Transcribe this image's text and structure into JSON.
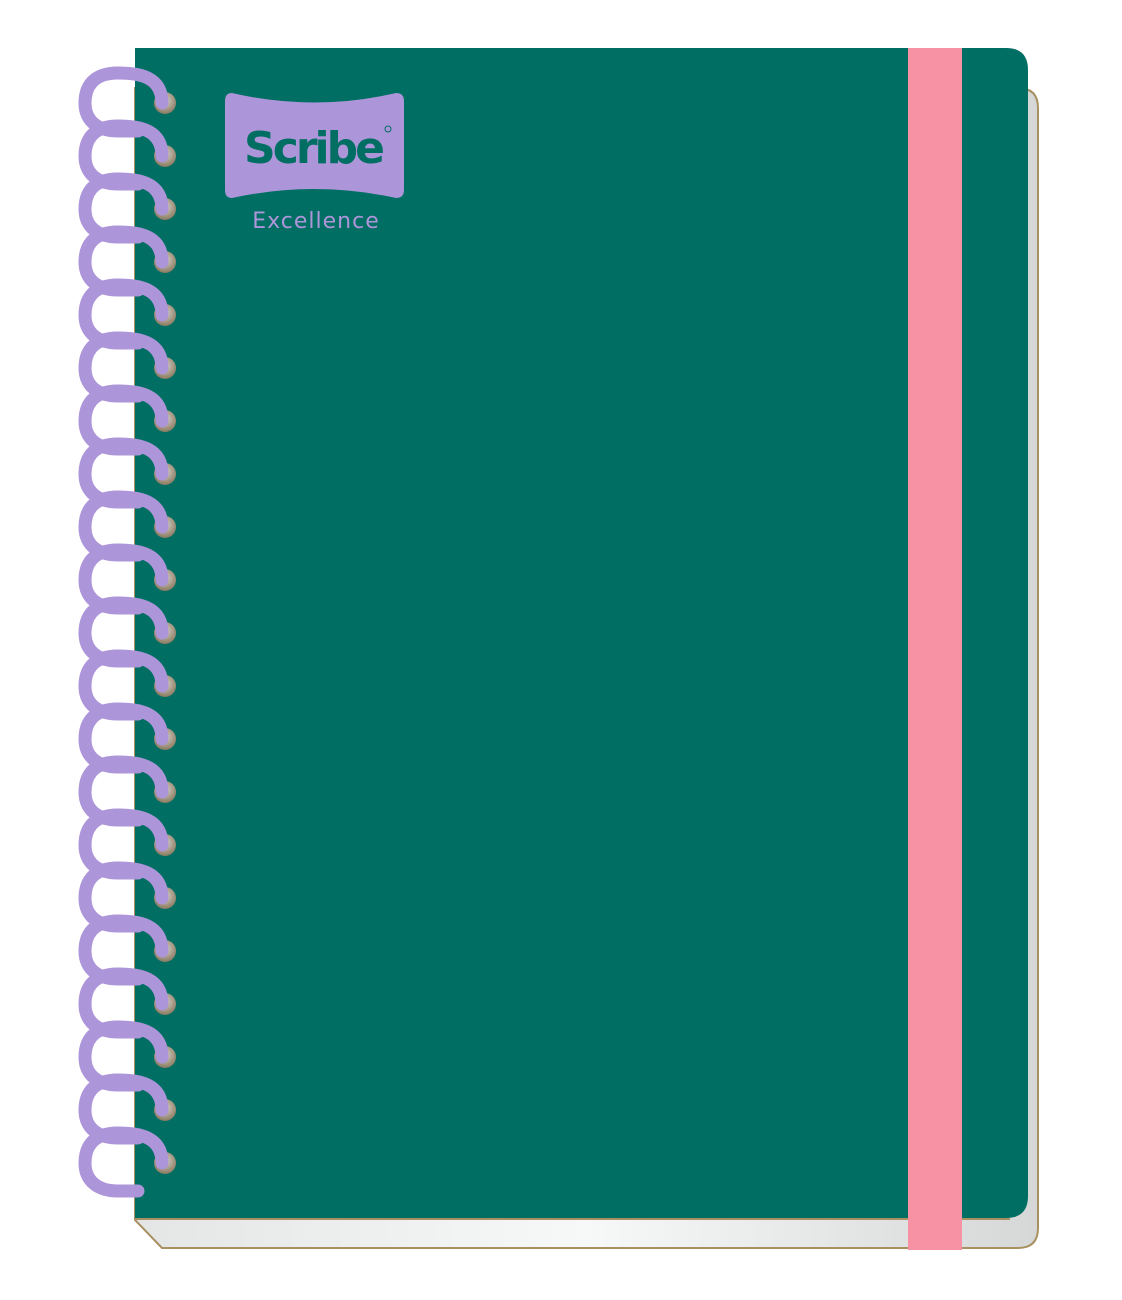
{
  "product": {
    "brand": "Scribe",
    "tagline": "Excellence",
    "registered_mark": "®"
  },
  "colors": {
    "cover": "#006e62",
    "spiral": "#ad95d9",
    "band": "#f792a4",
    "logo_badge": "#ad95d9",
    "logo_text": "#006e62",
    "page_edge": "#a89060",
    "pages": "#eeefef"
  },
  "spiral": {
    "coil_count": 21
  }
}
